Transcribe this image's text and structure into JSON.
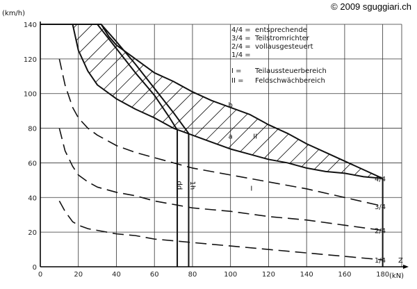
{
  "copyright": "© 2009 sguggiari.ch",
  "chart_data": {
    "type": "line",
    "title": "",
    "y_unit": "(km/h)",
    "x_unit": "(kN)",
    "x_label": "Z",
    "xlim": [
      0,
      190
    ],
    "ylim": [
      0,
      140
    ],
    "x_ticks": [
      0,
      20,
      40,
      60,
      80,
      100,
      120,
      140,
      160,
      180
    ],
    "y_ticks": [
      0,
      20,
      40,
      60,
      80,
      100,
      120,
      140
    ],
    "grid": true,
    "legend": [
      {
        "key": "4/4 =",
        "text": "entsprechende"
      },
      {
        "key": "3/4 =",
        "text": "Teilstromrichter"
      },
      {
        "key": "2/4 =",
        "text": "vollausgesteuert"
      },
      {
        "key": "1/4 =",
        "text": ""
      },
      {
        "key": "I =",
        "text": "Teilaussteuerbereich"
      },
      {
        "key": "II =",
        "text": "Feldschwächbereich"
      }
    ],
    "region_labels": [
      {
        "text": "b",
        "x": 100,
        "y": 92
      },
      {
        "text": "a",
        "x": 100,
        "y": 74
      },
      {
        "text": "II",
        "x": 113,
        "y": 74
      },
      {
        "text": "I",
        "x": 111,
        "y": 44
      },
      {
        "text": "dd",
        "x": 72,
        "y": 47
      },
      {
        "text": "1h",
        "x": 79,
        "y": 47
      }
    ],
    "curve_labels": [
      {
        "text": "4/4",
        "y": 51
      },
      {
        "text": "3/4",
        "y": 35
      },
      {
        "text": "2/4",
        "y": 21
      },
      {
        "text": "1/4",
        "y": 4
      }
    ],
    "series": [
      {
        "name": "4/4",
        "style": "solid",
        "x": [
          0,
          32,
          36,
          40,
          50,
          60,
          70,
          80,
          90,
          100,
          110,
          120,
          130,
          140,
          150,
          160,
          170,
          180
        ],
        "y": [
          140,
          140,
          133,
          128,
          120,
          112,
          107,
          101,
          96,
          92,
          88,
          82,
          77,
          71,
          66,
          61,
          56,
          51
        ]
      },
      {
        "name": "a",
        "style": "solid",
        "x": [
          17,
          20,
          25,
          30,
          40,
          50,
          60,
          70,
          80,
          90,
          100,
          110,
          120,
          130,
          140,
          150,
          160,
          170,
          180
        ],
        "y": [
          140,
          125,
          113,
          105,
          97,
          91,
          86,
          80,
          76,
          72,
          68,
          65,
          62,
          60,
          57,
          55,
          54,
          52,
          51
        ]
      },
      {
        "name": "dd",
        "style": "solid",
        "x": [
          14,
          30,
          40,
          50,
          60,
          68,
          72,
          72
        ],
        "y": [
          140,
          140,
          126,
          112,
          99,
          86,
          79,
          0
        ]
      },
      {
        "name": "1h",
        "style": "solid",
        "x": [
          32,
          40,
          50,
          60,
          70,
          78,
          78
        ],
        "y": [
          140,
          130,
          117,
          103,
          89,
          77,
          0
        ]
      },
      {
        "name": "4/4 vertical",
        "style": "solid",
        "x": [
          180,
          180
        ],
        "y": [
          51,
          0
        ]
      },
      {
        "name": "3/4",
        "style": "dashed",
        "x": [
          10,
          13,
          17,
          20,
          25,
          30,
          40,
          50,
          60,
          70,
          80,
          90,
          100,
          120,
          140,
          160,
          180
        ],
        "y": [
          120,
          105,
          92,
          86,
          80,
          76,
          70,
          66,
          63,
          60,
          57,
          55,
          53,
          49,
          45,
          40,
          35
        ]
      },
      {
        "name": "2/4",
        "style": "dashed",
        "x": [
          10,
          13,
          17,
          20,
          25,
          30,
          40,
          50,
          60,
          70,
          80,
          90,
          100,
          120,
          140,
          160,
          180
        ],
        "y": [
          80,
          67,
          58,
          53,
          49,
          46,
          43,
          41,
          38,
          36,
          34,
          33,
          32,
          29,
          27,
          24,
          21
        ]
      },
      {
        "name": "1/4",
        "style": "dashed",
        "x": [
          10,
          13,
          17,
          20,
          25,
          30,
          40,
          50,
          60,
          70,
          80,
          90,
          100,
          120,
          140,
          160,
          180
        ],
        "y": [
          38,
          32,
          26,
          24,
          22,
          21,
          19,
          18,
          16,
          15,
          14,
          13,
          12,
          10,
          8,
          6,
          4
        ]
      }
    ]
  }
}
